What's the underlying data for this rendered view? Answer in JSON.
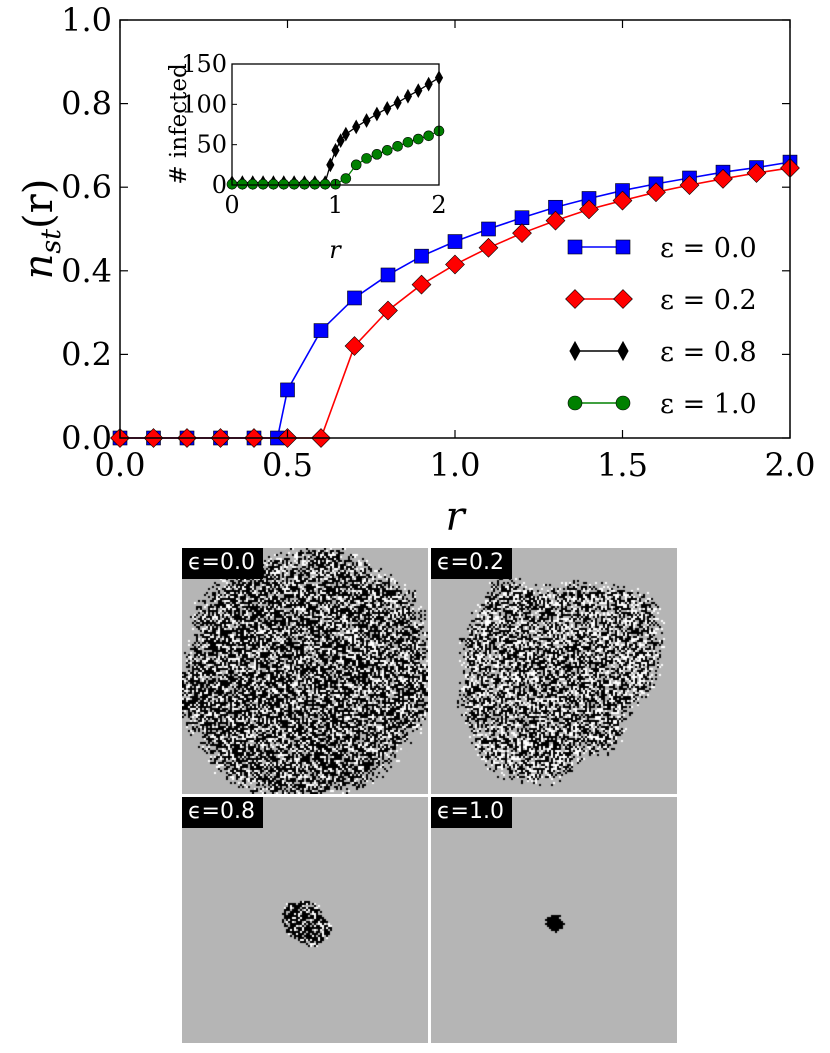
{
  "chart_data": {
    "type": "line",
    "main": {
      "xlabel": "r",
      "ylabel_base": "n",
      "ylabel_sub": "st",
      "ylabel_arg": "(r)",
      "xlim": [
        0.0,
        2.0
      ],
      "ylim": [
        0.0,
        1.0
      ],
      "xticks": [
        "0.0",
        "0.5",
        "1.0",
        "1.5",
        "2.0"
      ],
      "yticks": [
        "0.0",
        "0.2",
        "0.4",
        "0.6",
        "0.8",
        "1.0"
      ],
      "x": [
        0.0,
        0.1,
        0.2,
        0.3,
        0.4,
        0.47,
        0.5,
        0.6,
        0.7,
        0.8,
        0.9,
        1.0,
        1.1,
        1.2,
        1.3,
        1.4,
        1.5,
        1.6,
        1.7,
        1.8,
        1.9,
        2.0
      ],
      "series": [
        {
          "name": "ε = 0.0",
          "color": "#0000ff",
          "marker": "square",
          "x": [
            0.0,
            0.1,
            0.2,
            0.3,
            0.4,
            0.47,
            0.5,
            0.6,
            0.7,
            0.8,
            0.9,
            1.0,
            1.1,
            1.2,
            1.3,
            1.4,
            1.5,
            1.6,
            1.7,
            1.8,
            1.9,
            2.0
          ],
          "values": [
            0.0,
            0.0,
            0.0,
            0.0,
            0.0,
            0.0,
            0.115,
            0.257,
            0.335,
            0.39,
            0.435,
            0.47,
            0.5,
            0.527,
            0.552,
            0.573,
            0.592,
            0.608,
            0.622,
            0.636,
            0.647,
            0.66
          ]
        },
        {
          "name": "ε = 0.2",
          "color": "#ff0000",
          "marker": "diamond",
          "x": [
            0.0,
            0.1,
            0.2,
            0.3,
            0.4,
            0.5,
            0.6,
            0.7,
            0.8,
            0.9,
            1.0,
            1.1,
            1.2,
            1.3,
            1.4,
            1.5,
            1.6,
            1.7,
            1.8,
            1.9,
            2.0
          ],
          "values": [
            0.0,
            0.0,
            0.0,
            0.0,
            0.0,
            0.0,
            0.0,
            0.22,
            0.305,
            0.367,
            0.415,
            0.455,
            0.49,
            0.52,
            0.547,
            0.568,
            0.588,
            0.605,
            0.62,
            0.634,
            0.646
          ]
        },
        {
          "name": "ε = 0.8",
          "color": "#000000",
          "marker": "thin-diamond",
          "x": [],
          "values": []
        },
        {
          "name": "ε = 1.0",
          "color": "#008000",
          "marker": "circle",
          "x": [],
          "values": []
        }
      ],
      "legend_position": "right"
    },
    "inset": {
      "xlabel": "r",
      "ylabel": "# infected",
      "xlim": [
        0,
        2
      ],
      "ylim": [
        0,
        150
      ],
      "xticks": [
        "0",
        "1",
        "2"
      ],
      "yticks": [
        "0",
        "50",
        "100",
        "150"
      ],
      "series": [
        {
          "name": "ε = 0.8",
          "color": "#000000",
          "marker": "thin-diamond",
          "x": [
            0.0,
            0.1,
            0.2,
            0.3,
            0.4,
            0.5,
            0.6,
            0.7,
            0.8,
            0.9,
            0.95,
            1.0,
            1.05,
            1.1,
            1.2,
            1.3,
            1.4,
            1.5,
            1.6,
            1.7,
            1.8,
            1.9,
            2.0
          ],
          "values": [
            3,
            3,
            3,
            3,
            3,
            3,
            3,
            3,
            3,
            3,
            25,
            43,
            55,
            63,
            72,
            80,
            88,
            95,
            102,
            110,
            117,
            125,
            133
          ]
        },
        {
          "name": "ε = 1.0",
          "color": "#008000",
          "marker": "circle",
          "x": [
            0.0,
            0.1,
            0.2,
            0.3,
            0.4,
            0.5,
            0.6,
            0.7,
            0.8,
            0.9,
            1.0,
            1.1,
            1.2,
            1.3,
            1.4,
            1.5,
            1.6,
            1.7,
            1.8,
            1.9,
            2.0
          ],
          "values": [
            1,
            1,
            1,
            1,
            1,
            1,
            1,
            1,
            1,
            1,
            1,
            8,
            25,
            33,
            38,
            43,
            48,
            53,
            57,
            61,
            67
          ]
        }
      ]
    }
  },
  "panels": [
    {
      "label": "ϵ=0.0",
      "extent": 0.5,
      "density": 0.55
    },
    {
      "label": "ϵ=0.2",
      "extent": 0.4,
      "density": 0.45
    },
    {
      "label": "ϵ=0.8",
      "extent": 0.09,
      "density": 0.7
    },
    {
      "label": "ϵ=1.0",
      "extent": 0.035,
      "density": 0.95
    }
  ]
}
